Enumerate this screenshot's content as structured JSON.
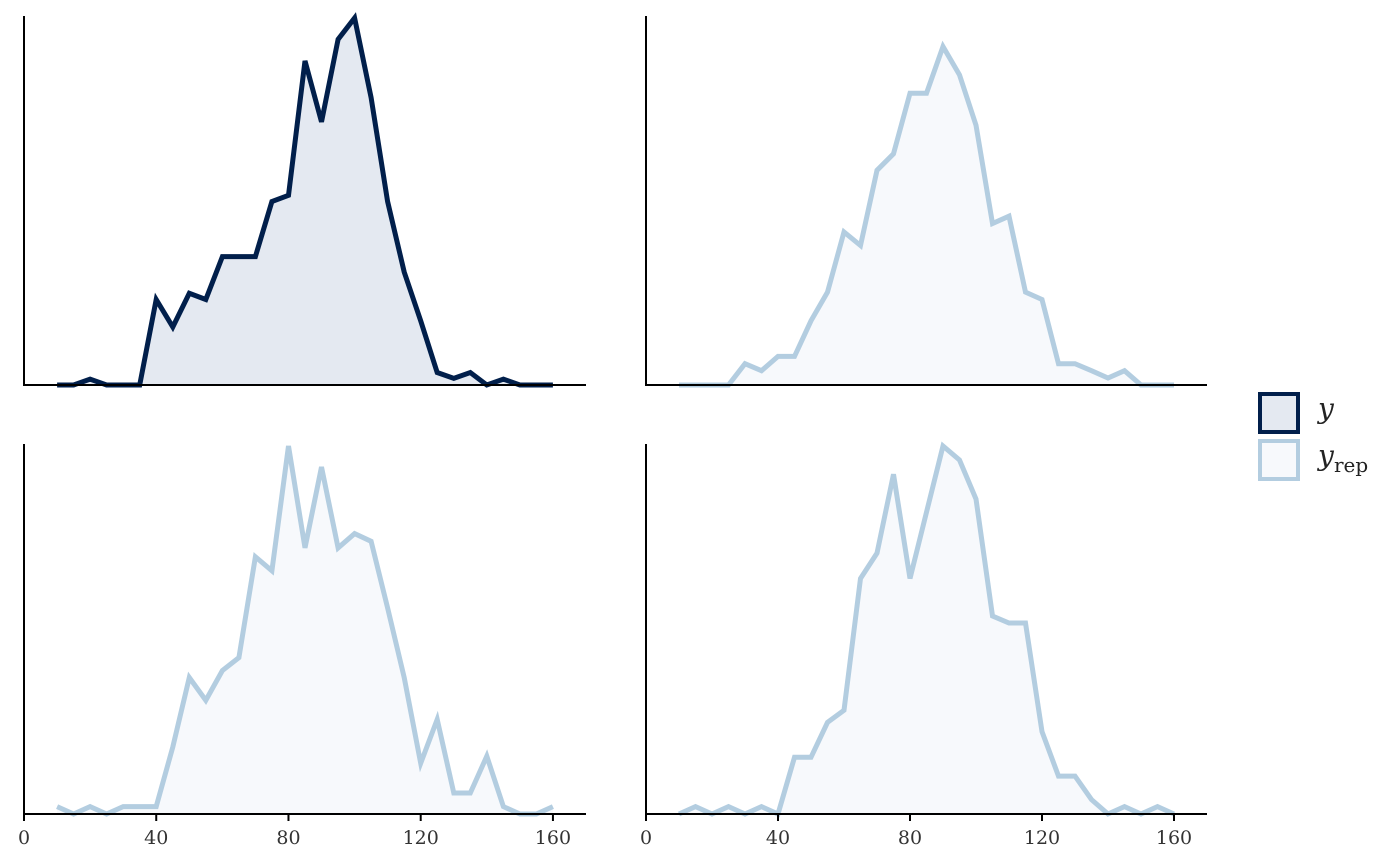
{
  "colors": {
    "y_line": "#011f4b",
    "y_fill": "#e4e9f1",
    "yrep_line": "#b3cde0",
    "yrep_fill": "#f7f9fc",
    "axis": "#000000"
  },
  "legend": {
    "position": "right",
    "items": [
      {
        "key": "y",
        "label": "y",
        "subscript": ""
      },
      {
        "key": "yrep",
        "label": "y",
        "subscript": "rep"
      }
    ]
  },
  "chart_data": [
    {
      "type": "area",
      "series_key": "y",
      "x_ticks": [
        0,
        40,
        80,
        120,
        160
      ],
      "show_x_tick_labels": false,
      "xlim": [
        0,
        170
      ],
      "ylim": [
        0,
        1
      ],
      "y_axis_ticks": false,
      "x": [
        10,
        15,
        20,
        25,
        30,
        35,
        40,
        45,
        50,
        55,
        60,
        65,
        70,
        75,
        80,
        85,
        90,
        95,
        100,
        105,
        110,
        115,
        120,
        125,
        130,
        135,
        140,
        145,
        150,
        155,
        160
      ],
      "values": [
        0,
        0,
        0.016,
        0,
        0,
        0,
        0.233,
        0.158,
        0.25,
        0.233,
        0.35,
        0.35,
        0.35,
        0.5,
        0.517,
        0.883,
        0.717,
        0.942,
        1.0,
        0.783,
        0.5,
        0.308,
        0.175,
        0.034,
        0.018,
        0.034,
        0,
        0.016,
        0,
        0,
        0
      ]
    },
    {
      "type": "area",
      "series_key": "yrep",
      "x_ticks": [
        0,
        40,
        80,
        120,
        160
      ],
      "show_x_tick_labels": false,
      "xlim": [
        0,
        170
      ],
      "ylim": [
        0,
        1
      ],
      "y_axis_ticks": false,
      "x": [
        10,
        15,
        20,
        25,
        30,
        35,
        40,
        45,
        50,
        55,
        60,
        65,
        70,
        75,
        80,
        85,
        90,
        95,
        100,
        105,
        110,
        115,
        120,
        125,
        130,
        135,
        140,
        145,
        150,
        155,
        160
      ],
      "values": [
        0,
        0,
        0,
        0,
        0.058,
        0.039,
        0.078,
        0.078,
        0.175,
        0.253,
        0.417,
        0.38,
        0.585,
        0.63,
        0.795,
        0.795,
        0.922,
        0.845,
        0.708,
        0.44,
        0.46,
        0.253,
        0.233,
        0.058,
        0.058,
        0.039,
        0.019,
        0.039,
        0,
        0,
        0
      ]
    },
    {
      "type": "area",
      "series_key": "yrep",
      "x_ticks": [
        0,
        40,
        80,
        120,
        160
      ],
      "show_x_tick_labels": true,
      "xlim": [
        0,
        170
      ],
      "ylim": [
        0,
        1
      ],
      "y_axis_ticks": false,
      "x": [
        10,
        15,
        20,
        25,
        30,
        35,
        40,
        45,
        50,
        55,
        60,
        65,
        70,
        75,
        80,
        85,
        90,
        95,
        100,
        105,
        110,
        115,
        120,
        125,
        130,
        135,
        140,
        145,
        150,
        155,
        160
      ],
      "values": [
        0.02,
        0,
        0.02,
        0,
        0.02,
        0.02,
        0.02,
        0.182,
        0.371,
        0.309,
        0.39,
        0.425,
        0.699,
        0.661,
        1.0,
        0.723,
        0.943,
        0.723,
        0.762,
        0.741,
        0.56,
        0.371,
        0.138,
        0.257,
        0.057,
        0.057,
        0.157,
        0.02,
        0,
        0,
        0.02
      ]
    },
    {
      "type": "area",
      "series_key": "yrep",
      "x_ticks": [
        0,
        40,
        80,
        120,
        160
      ],
      "show_x_tick_labels": true,
      "xlim": [
        0,
        170
      ],
      "ylim": [
        0,
        1
      ],
      "y_axis_ticks": false,
      "x": [
        10,
        15,
        20,
        25,
        30,
        35,
        40,
        45,
        50,
        55,
        60,
        65,
        70,
        75,
        80,
        85,
        90,
        95,
        100,
        105,
        110,
        115,
        120,
        125,
        130,
        135,
        140,
        145,
        150,
        155,
        160
      ],
      "values": [
        0,
        0.02,
        0,
        0.02,
        0,
        0.02,
        0,
        0.154,
        0.154,
        0.249,
        0.282,
        0.64,
        0.709,
        0.923,
        0.64,
        0.82,
        1.0,
        0.962,
        0.856,
        0.538,
        0.519,
        0.519,
        0.224,
        0.103,
        0.103,
        0.039,
        0,
        0.02,
        0,
        0.02,
        0
      ]
    }
  ]
}
